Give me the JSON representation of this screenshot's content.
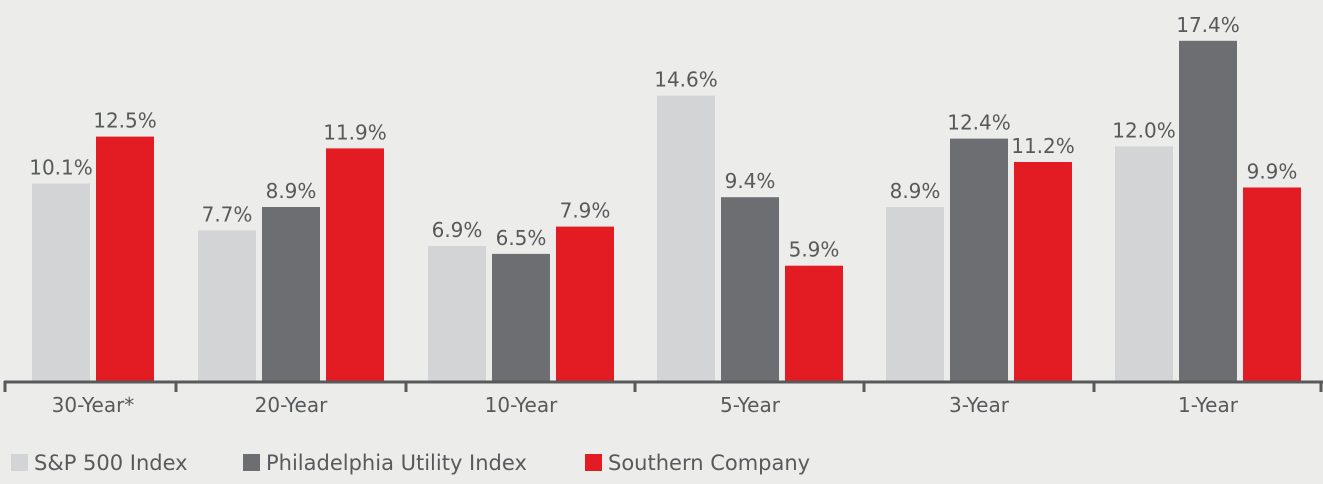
{
  "chart_data": {
    "type": "bar",
    "categories": [
      "30-Year*",
      "20-Year",
      "10-Year",
      "5-Year",
      "3-Year",
      "1-Year"
    ],
    "series": [
      {
        "name": "S&P 500 Index",
        "color": "#d3d4d5",
        "values": [
          10.1,
          7.7,
          6.9,
          14.6,
          8.9,
          12.0
        ],
        "labels": [
          "10.1%",
          "7.7%",
          "6.9%",
          "14.6%",
          "8.9%",
          "12.0%"
        ]
      },
      {
        "name": "Philadelphia Utility Index",
        "color": "#6d6e71",
        "values": [
          null,
          8.9,
          6.5,
          9.4,
          12.4,
          17.4
        ],
        "labels": [
          null,
          "8.9%",
          "6.5%",
          "9.4%",
          "12.4%",
          "17.4%"
        ]
      },
      {
        "name": "Southern Company",
        "color": "#e31b23",
        "values": [
          12.5,
          11.9,
          7.9,
          5.9,
          11.2,
          9.9
        ],
        "labels": [
          "12.5%",
          "11.9%",
          "7.9%",
          "5.9%",
          "11.2%",
          "9.9%"
        ]
      }
    ],
    "ylim": [
      0,
      18
    ],
    "grid": false,
    "legend_position": "bottom-left",
    "axis_color": "#58595b"
  }
}
